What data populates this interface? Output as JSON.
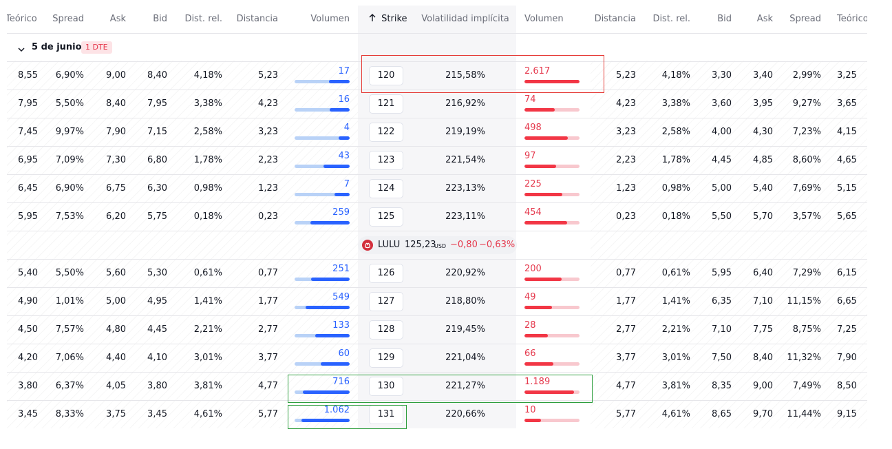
{
  "header": {
    "teorico_l": "Teórico",
    "spread_l": "Spread",
    "ask_l": "Ask",
    "bid_l": "Bid",
    "distrel_l": "Dist. rel.",
    "dist_l": "Distancia",
    "vol_l": "Volumen",
    "strike": "Strike",
    "iv": "Volatilidad implícita",
    "vol_r": "Volumen",
    "dist_r": "Distancia",
    "distrel_r": "Dist. rel.",
    "bid_r": "Bid",
    "ask_r": "Ask",
    "spread_r": "Spread",
    "teorico_r": "Teórico"
  },
  "sort_icon": "arrow-up-icon",
  "group": {
    "title": "5 de junio",
    "badge": "1 DTE",
    "icon": "chevron-down-icon"
  },
  "underlying": {
    "symbol": "LULU",
    "price": "125,23",
    "currency": "USD",
    "change": "−0,80",
    "change_pct": "−0,63%",
    "logo_icon": "lululemon-logo-icon"
  },
  "colors": {
    "call_accent": "#2962ff",
    "call_track": "#b9d2f7",
    "put_accent": "#f23645",
    "put_track": "#f8c8ce",
    "highlight_red": "#e53935",
    "highlight_green": "#2e9e3e"
  },
  "rows": [
    {
      "c_teo": "8,55",
      "c_spread": "6,90%",
      "c_ask": "9,00",
      "c_bid": "8,40",
      "c_distrel": "4,18%",
      "c_dist": "5,23",
      "c_vol": "17",
      "c_vol_frac": 0.38,
      "strike": "120",
      "iv": "215,58%",
      "p_vol": "2.617",
      "p_vol_frac": 1.0,
      "p_dist": "5,23",
      "p_distrel": "4,18%",
      "p_bid": "3,30",
      "p_ask": "3,40",
      "p_spread": "2,99%",
      "p_teo": "3,25"
    },
    {
      "c_teo": "7,95",
      "c_spread": "5,50%",
      "c_ask": "8,40",
      "c_bid": "7,95",
      "c_distrel": "3,38%",
      "c_dist": "4,23",
      "c_vol": "16",
      "c_vol_frac": 0.36,
      "strike": "121",
      "iv": "216,92%",
      "p_vol": "74",
      "p_vol_frac": 0.55,
      "p_dist": "4,23",
      "p_distrel": "3,38%",
      "p_bid": "3,60",
      "p_ask": "3,95",
      "p_spread": "9,27%",
      "p_teo": "3,65"
    },
    {
      "c_teo": "7,45",
      "c_spread": "9,97%",
      "c_ask": "7,90",
      "c_bid": "7,15",
      "c_distrel": "2,58%",
      "c_dist": "3,23",
      "c_vol": "4",
      "c_vol_frac": 0.2,
      "strike": "122",
      "iv": "219,19%",
      "p_vol": "498",
      "p_vol_frac": 0.79,
      "p_dist": "3,23",
      "p_distrel": "2,58%",
      "p_bid": "4,00",
      "p_ask": "4,30",
      "p_spread": "7,23%",
      "p_teo": "4,15"
    },
    {
      "c_teo": "6,95",
      "c_spread": "7,09%",
      "c_ask": "7,30",
      "c_bid": "6,80",
      "c_distrel": "1,78%",
      "c_dist": "2,23",
      "c_vol": "43",
      "c_vol_frac": 0.48,
      "strike": "123",
      "iv": "221,54%",
      "p_vol": "97",
      "p_vol_frac": 0.57,
      "p_dist": "2,23",
      "p_distrel": "1,78%",
      "p_bid": "4,45",
      "p_ask": "4,85",
      "p_spread": "8,60%",
      "p_teo": "4,65"
    },
    {
      "c_teo": "6,45",
      "c_spread": "6,90%",
      "c_ask": "6,75",
      "c_bid": "6,30",
      "c_distrel": "0,98%",
      "c_dist": "1,23",
      "c_vol": "7",
      "c_vol_frac": 0.28,
      "strike": "124",
      "iv": "223,13%",
      "p_vol": "225",
      "p_vol_frac": 0.69,
      "p_dist": "1,23",
      "p_distrel": "0,98%",
      "p_bid": "5,00",
      "p_ask": "5,40",
      "p_spread": "7,69%",
      "p_teo": "5,15"
    },
    {
      "c_teo": "5,95",
      "c_spread": "7,53%",
      "c_ask": "6,20",
      "c_bid": "5,75",
      "c_distrel": "0,18%",
      "c_dist": "0,23",
      "c_vol": "259",
      "c_vol_frac": 0.71,
      "strike": "125",
      "iv": "223,11%",
      "p_vol": "454",
      "p_vol_frac": 0.78,
      "p_dist": "0,23",
      "p_distrel": "0,18%",
      "p_bid": "5,50",
      "p_ask": "5,70",
      "p_spread": "3,57%",
      "p_teo": "5,65"
    },
    {
      "c_teo": "5,40",
      "c_spread": "5,50%",
      "c_ask": "5,60",
      "c_bid": "5,30",
      "c_distrel": "0,61%",
      "c_dist": "0,77",
      "c_vol": "251",
      "c_vol_frac": 0.7,
      "strike": "126",
      "iv": "220,92%",
      "p_vol": "200",
      "p_vol_frac": 0.68,
      "p_dist": "0,77",
      "p_distrel": "0,61%",
      "p_bid": "5,95",
      "p_ask": "6,40",
      "p_spread": "7,29%",
      "p_teo": "6,15"
    },
    {
      "c_teo": "4,90",
      "c_spread": "1,01%",
      "c_ask": "5,00",
      "c_bid": "4,95",
      "c_distrel": "1,41%",
      "c_dist": "1,77",
      "c_vol": "549",
      "c_vol_frac": 0.8,
      "strike": "127",
      "iv": "218,80%",
      "p_vol": "49",
      "p_vol_frac": 0.5,
      "p_dist": "1,77",
      "p_distrel": "1,41%",
      "p_bid": "6,35",
      "p_ask": "7,10",
      "p_spread": "11,15%",
      "p_teo": "6,65"
    },
    {
      "c_teo": "4,50",
      "c_spread": "7,57%",
      "c_ask": "4,80",
      "c_bid": "4,45",
      "c_distrel": "2,21%",
      "c_dist": "2,77",
      "c_vol": "133",
      "c_vol_frac": 0.62,
      "strike": "128",
      "iv": "219,45%",
      "p_vol": "28",
      "p_vol_frac": 0.43,
      "p_dist": "2,77",
      "p_distrel": "2,21%",
      "p_bid": "7,10",
      "p_ask": "7,75",
      "p_spread": "8,75%",
      "p_teo": "7,25"
    },
    {
      "c_teo": "4,20",
      "c_spread": "7,06%",
      "c_ask": "4,40",
      "c_bid": "4,10",
      "c_distrel": "3,01%",
      "c_dist": "3,77",
      "c_vol": "60",
      "c_vol_frac": 0.52,
      "strike": "129",
      "iv": "221,04%",
      "p_vol": "66",
      "p_vol_frac": 0.53,
      "p_dist": "3,77",
      "p_distrel": "3,01%",
      "p_bid": "7,50",
      "p_ask": "8,40",
      "p_spread": "11,32%",
      "p_teo": "7,90"
    },
    {
      "c_teo": "3,80",
      "c_spread": "6,37%",
      "c_ask": "4,05",
      "c_bid": "3,80",
      "c_distrel": "3,81%",
      "c_dist": "4,77",
      "c_vol": "716",
      "c_vol_frac": 0.85,
      "strike": "130",
      "iv": "221,27%",
      "p_vol": "1.189",
      "p_vol_frac": 0.9,
      "p_dist": "4,77",
      "p_distrel": "3,81%",
      "p_bid": "8,35",
      "p_ask": "9,00",
      "p_spread": "7,49%",
      "p_teo": "8,50"
    },
    {
      "c_teo": "3,45",
      "c_spread": "8,33%",
      "c_ask": "3,75",
      "c_bid": "3,45",
      "c_distrel": "4,61%",
      "c_dist": "5,77",
      "c_vol": "1.062",
      "c_vol_frac": 0.88,
      "strike": "131",
      "iv": "220,66%",
      "p_vol": "10",
      "p_vol_frac": 0.3,
      "p_dist": "5,77",
      "p_distrel": "4,61%",
      "p_bid": "8,65",
      "p_ask": "9,70",
      "p_spread": "11,44%",
      "p_teo": "9,15"
    }
  ]
}
